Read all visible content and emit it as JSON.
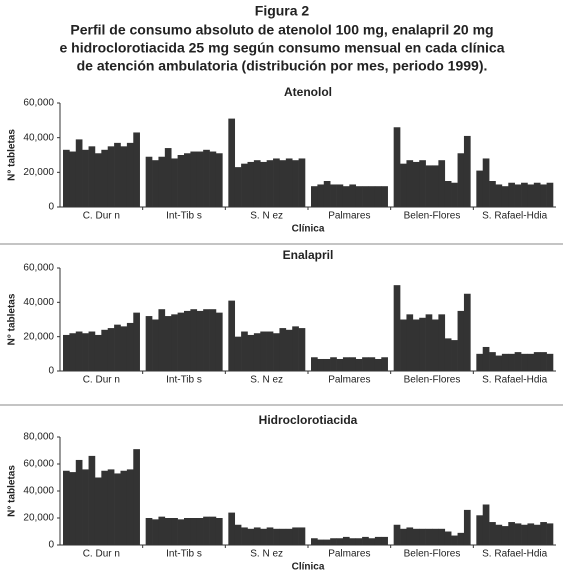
{
  "figure": {
    "label": "Figura 2",
    "title": [
      "Perfil de consumo absoluto de atenolol 100 mg, enalapril 20 mg",
      "e hidroclorotiacida 25 mg según consumo mensual en cada clínica",
      "de atención ambulatoria (distribución por mes, periodo 1999)."
    ]
  },
  "chart_data": [
    {
      "type": "bar",
      "title": "Atenolol",
      "ylabel": "N° tabletas",
      "xlabel": "Clínica",
      "color": "#333333",
      "categories": [
        "C. Dur n",
        "Int-Tib s",
        "S. N ez",
        "Palmares",
        "Belen-Flores",
        "S. Rafael-Hdia"
      ],
      "values": [
        [
          33000,
          32000,
          39000,
          33000,
          35000,
          31000,
          33000,
          35000,
          37000,
          35000,
          37000,
          43000
        ],
        [
          29000,
          27000,
          29000,
          34000,
          28000,
          30000,
          31000,
          32000,
          32000,
          33000,
          32000,
          31000
        ],
        [
          51000,
          23000,
          25000,
          26000,
          27000,
          26000,
          27000,
          28000,
          27000,
          28000,
          27000,
          28000
        ],
        [
          12000,
          13000,
          15000,
          13000,
          13000,
          12000,
          13000,
          12000,
          12000,
          12000,
          12000,
          12000
        ],
        [
          46000,
          25000,
          27000,
          26000,
          27000,
          24000,
          24000,
          27000,
          15000,
          14000,
          31000,
          41000
        ],
        [
          21000,
          28000,
          15000,
          13000,
          12000,
          14000,
          13000,
          14000,
          13000,
          14000,
          13000,
          14000
        ]
      ],
      "ylim": [
        0,
        60000
      ],
      "yticks": [
        0,
        {
          "value": 20000,
          "label": "20,000"
        },
        {
          "value": 40000,
          "label": "40,000"
        },
        {
          "value": 60000,
          "label": "60,000"
        }
      ]
    },
    {
      "type": "bar",
      "title": "Enalapril",
      "ylabel": "N° tabletas",
      "color": "#333333",
      "categories": [
        "C. Dur n",
        "Int-Tib s",
        "S. N ez",
        "Palmares",
        "Belen-Flores",
        "S. Rafael-Hdia"
      ],
      "values": [
        [
          21000,
          22000,
          23000,
          22000,
          23000,
          21000,
          24000,
          25000,
          27000,
          26000,
          28000,
          34000
        ],
        [
          32000,
          30000,
          36000,
          32000,
          33000,
          34000,
          35000,
          36000,
          35000,
          36000,
          36000,
          34000
        ],
        [
          41000,
          20000,
          23000,
          21000,
          22000,
          23000,
          23000,
          22000,
          25000,
          24000,
          26000,
          25000
        ],
        [
          8000,
          7000,
          7000,
          8000,
          7000,
          8000,
          8000,
          7000,
          8000,
          8000,
          7000,
          8000
        ],
        [
          50000,
          30000,
          33000,
          30000,
          31000,
          33000,
          30000,
          33000,
          19000,
          18000,
          35000,
          45000
        ],
        [
          10000,
          14000,
          11000,
          9000,
          10000,
          10000,
          11000,
          10000,
          10000,
          11000,
          11000,
          10000
        ]
      ],
      "ylim": [
        0,
        60000
      ],
      "yticks": [
        0,
        {
          "value": 20000,
          "label": "20,000"
        },
        {
          "value": 40000,
          "label": "40,000"
        },
        {
          "value": 60000,
          "label": "60,000"
        }
      ]
    },
    {
      "type": "bar",
      "title": "Hidroclorotiacida",
      "ylabel": "N° tabletas",
      "xlabel": "Clínica",
      "color": "#333333",
      "categories": [
        "C. Dur n",
        "Int-Tib s",
        "S. N ez",
        "Palmares",
        "Belen-Flores",
        "S. Rafael-Hdia"
      ],
      "values": [
        [
          55000,
          54000,
          63000,
          56000,
          66000,
          50000,
          55000,
          56000,
          53000,
          55000,
          56000,
          71000
        ],
        [
          20000,
          19000,
          21000,
          20000,
          20000,
          19000,
          20000,
          20000,
          20000,
          21000,
          21000,
          20000
        ],
        [
          24000,
          15000,
          13000,
          12000,
          13000,
          12000,
          13000,
          12000,
          12000,
          12000,
          13000,
          13000
        ],
        [
          5000,
          4000,
          4000,
          5000,
          5000,
          6000,
          5000,
          5000,
          6000,
          5000,
          6000,
          6000
        ],
        [
          15000,
          12000,
          13000,
          12000,
          12000,
          12000,
          12000,
          12000,
          10000,
          7000,
          9000,
          26000
        ],
        [
          22000,
          30000,
          17000,
          15000,
          14000,
          17000,
          16000,
          15000,
          16000,
          15000,
          17000,
          16000
        ]
      ],
      "ylim": [
        0,
        80000
      ],
      "yticks": [
        0,
        {
          "value": 20000,
          "label": "20,000"
        },
        {
          "value": 40000,
          "label": "40,000"
        },
        {
          "value": 60000,
          "label": "60,000"
        },
        {
          "value": 80000,
          "label": "80,000"
        }
      ]
    }
  ]
}
